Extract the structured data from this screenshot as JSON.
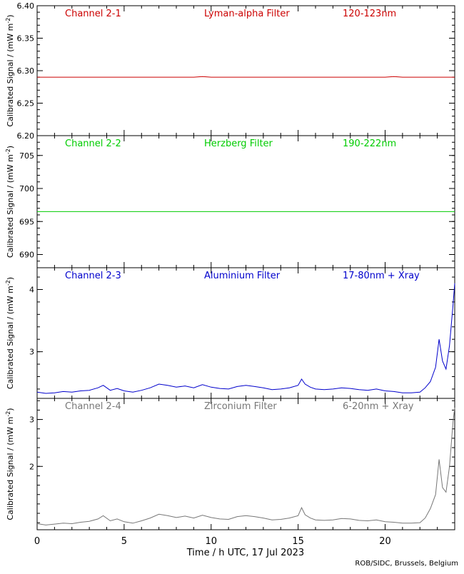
{
  "credit": "ROB/SIDC, Brussels, Belgium",
  "x_axis": {
    "label": "Time / h UTC, 17 Jul 2023",
    "range": [
      0,
      24
    ],
    "ticks": [
      0,
      5,
      10,
      15,
      20
    ]
  },
  "chart_data": [
    {
      "type": "line",
      "channel": "Channel 2-1",
      "filter": "Lyman-alpha Filter",
      "band": "120-123nm",
      "color": "#cc0000",
      "ylabel_text": "Calibrated Signal / (mW m",
      "ylabel_sup": "-2",
      "ylabel_close": ")",
      "ylim": [
        6.2,
        6.4
      ],
      "yticks": [
        "6.20",
        "6.25",
        "6.30",
        "6.35",
        "6.40"
      ],
      "x": [
        0,
        1,
        2,
        3,
        4,
        5,
        6,
        7,
        8,
        9,
        9.5,
        10,
        11,
        12,
        13,
        14,
        15,
        16,
        17,
        18,
        19,
        20,
        20.5,
        21,
        22,
        23,
        24
      ],
      "y": [
        6.29,
        6.29,
        6.29,
        6.29,
        6.29,
        6.29,
        6.29,
        6.29,
        6.29,
        6.29,
        6.291,
        6.29,
        6.29,
        6.29,
        6.29,
        6.29,
        6.29,
        6.29,
        6.29,
        6.29,
        6.29,
        6.29,
        6.291,
        6.29,
        6.29,
        6.29,
        6.29
      ]
    },
    {
      "type": "line",
      "channel": "Channel 2-2",
      "filter": "Herzberg Filter",
      "band": "190-222nm",
      "color": "#00cc00",
      "ylabel_text": "Calibrated Signal / (mW m",
      "ylabel_sup": "-2",
      "ylabel_close": ")",
      "ylim": [
        688,
        708
      ],
      "yticks": [
        "690",
        "695",
        "700",
        "705"
      ],
      "x": [
        0,
        24
      ],
      "y": [
        696.5,
        696.5
      ]
    },
    {
      "type": "line",
      "channel": "Channel 2-3",
      "filter": "Aluminium Filter",
      "band": "17-80nm + Xray",
      "color": "#0000cc",
      "ylabel_text": "Calibrated Signal / (mW m",
      "ylabel_sup": "-2",
      "ylabel_close": ")",
      "ylim": [
        2.25,
        4.35
      ],
      "yticks": [
        "3",
        "4"
      ],
      "x": [
        0,
        0.5,
        1,
        1.5,
        2,
        2.5,
        3,
        3.5,
        3.8,
        4.2,
        4.6,
        5,
        5.5,
        6,
        6.5,
        7,
        7.5,
        8,
        8.5,
        9,
        9.5,
        10,
        10.5,
        11,
        11.5,
        12,
        12.5,
        13,
        13.5,
        14,
        14.5,
        15,
        15.2,
        15.4,
        15.7,
        16,
        16.5,
        17,
        17.5,
        18,
        18.5,
        19,
        19.5,
        20,
        20.5,
        21,
        21.5,
        22,
        22.3,
        22.6,
        22.9,
        23.1,
        23.3,
        23.5,
        23.7,
        23.9,
        24
      ],
      "y": [
        2.35,
        2.33,
        2.34,
        2.36,
        2.35,
        2.37,
        2.38,
        2.42,
        2.46,
        2.38,
        2.41,
        2.37,
        2.35,
        2.38,
        2.42,
        2.48,
        2.46,
        2.43,
        2.45,
        2.42,
        2.47,
        2.43,
        2.41,
        2.4,
        2.44,
        2.46,
        2.44,
        2.42,
        2.39,
        2.4,
        2.42,
        2.46,
        2.56,
        2.48,
        2.43,
        2.4,
        2.39,
        2.4,
        2.42,
        2.41,
        2.39,
        2.38,
        2.4,
        2.37,
        2.36,
        2.34,
        2.34,
        2.35,
        2.42,
        2.52,
        2.75,
        3.2,
        2.85,
        2.72,
        3.1,
        3.75,
        4.1
      ]
    },
    {
      "type": "line",
      "channel": "Channel 2-4",
      "filter": "Zirconium Filter",
      "band": "6-20nm + Xray",
      "color": "#777777",
      "ylabel_text": "Calibrated Signal / (mW m",
      "ylabel_sup": "-2",
      "ylabel_close": ")",
      "ylim": [
        0.65,
        3.45
      ],
      "yticks": [
        "2",
        "3"
      ],
      "x": [
        0,
        0.5,
        1,
        1.5,
        2,
        2.5,
        3,
        3.5,
        3.8,
        4.2,
        4.6,
        5,
        5.5,
        6,
        6.5,
        7,
        7.5,
        8,
        8.5,
        9,
        9.5,
        10,
        10.5,
        11,
        11.5,
        12,
        12.5,
        13,
        13.5,
        14,
        14.5,
        15,
        15.2,
        15.4,
        15.7,
        16,
        16.5,
        17,
        17.5,
        18,
        18.5,
        19,
        19.5,
        20,
        20.5,
        21,
        21.5,
        22,
        22.3,
        22.6,
        22.9,
        23.1,
        23.3,
        23.5,
        23.7,
        23.9,
        24
      ],
      "y": [
        0.78,
        0.75,
        0.77,
        0.79,
        0.78,
        0.81,
        0.83,
        0.88,
        0.95,
        0.84,
        0.88,
        0.82,
        0.79,
        0.84,
        0.9,
        0.98,
        0.95,
        0.91,
        0.94,
        0.9,
        0.96,
        0.91,
        0.88,
        0.87,
        0.93,
        0.95,
        0.93,
        0.9,
        0.86,
        0.87,
        0.9,
        0.95,
        1.12,
        0.97,
        0.9,
        0.86,
        0.85,
        0.86,
        0.89,
        0.88,
        0.85,
        0.84,
        0.86,
        0.82,
        0.81,
        0.79,
        0.79,
        0.8,
        0.9,
        1.1,
        1.4,
        2.15,
        1.55,
        1.45,
        2.0,
        2.95,
        3.25
      ]
    }
  ]
}
